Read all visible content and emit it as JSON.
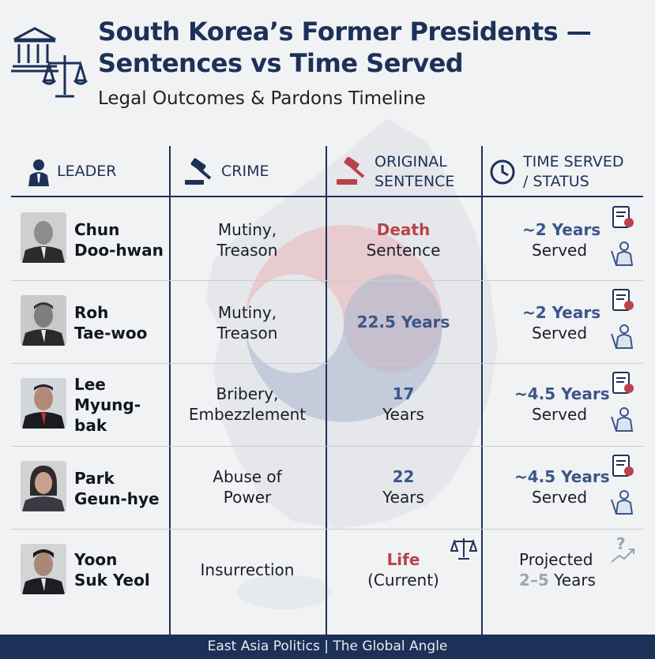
{
  "header": {
    "title_line1": "South Korea’s Former Presidents —",
    "title_line2": "Sentences vs Time Served",
    "subtitle": "Legal Outcomes & Pardons Timeline"
  },
  "columns": {
    "leader": "LEADER",
    "crime": "CRIME",
    "sentence_line1": "ORIGINAL",
    "sentence_line2": "SENTENCE",
    "status_line1": "TIME SERVED",
    "status_line2": "/ STATUS"
  },
  "rows": [
    {
      "name_line1": "Chun",
      "name_line2": "Doo-hwan",
      "name_line3": "",
      "crime_line1": "Mutiny,",
      "crime_line2": "Treason",
      "sentence_line1": "Death",
      "sentence_line2": "Sentence",
      "sentence_style": "red",
      "status_line1": "~2 Years",
      "status_line2": "Served"
    },
    {
      "name_line1": "Roh",
      "name_line2": "Tae-woo",
      "name_line3": "",
      "crime_line1": "Mutiny,",
      "crime_line2": "Treason",
      "sentence_line1": "22.5 Years",
      "sentence_line2": "",
      "sentence_style": "blue",
      "status_line1": "~2 Years",
      "status_line2": "Served"
    },
    {
      "name_line1": "Lee",
      "name_line2": "Myung-",
      "name_line3": "bak",
      "crime_line1": "Bribery,",
      "crime_line2": "Embezzlement",
      "sentence_line1": "17",
      "sentence_line2": "Years",
      "sentence_style": "blue",
      "status_line1": "~4.5 Years",
      "status_line2": "Served"
    },
    {
      "name_line1": "Park",
      "name_line2": "Geun-hye",
      "name_line3": "",
      "crime_line1": "Abuse of",
      "crime_line2": "Power",
      "sentence_line1": "22",
      "sentence_line2": "Years",
      "sentence_style": "blue",
      "status_line1": "~4.5 Years",
      "status_line2": "Served"
    },
    {
      "name_line1": "Yoon",
      "name_line2": "Suk Yeol",
      "name_line3": "",
      "crime_line1": "Insurrection",
      "crime_line2": "",
      "sentence_line1": "Life",
      "sentence_line2": "(Current)",
      "sentence_style": "red",
      "status_line1": "Projected",
      "status_line2_a": "2–5",
      "status_line2_b": " Years"
    }
  ],
  "footer": {
    "text": "East Asia Politics | The Global Angle"
  },
  "colors": {
    "navy": "#1d3158",
    "red": "#b8434a",
    "blue": "#3b5688",
    "grey": "#a0a6b0"
  },
  "icons": [
    "courthouse-icon",
    "scales-icon",
    "person-icon",
    "gavel-icon",
    "clock-icon",
    "certificate-icon",
    "pardon-icon",
    "trend-question-icon"
  ]
}
